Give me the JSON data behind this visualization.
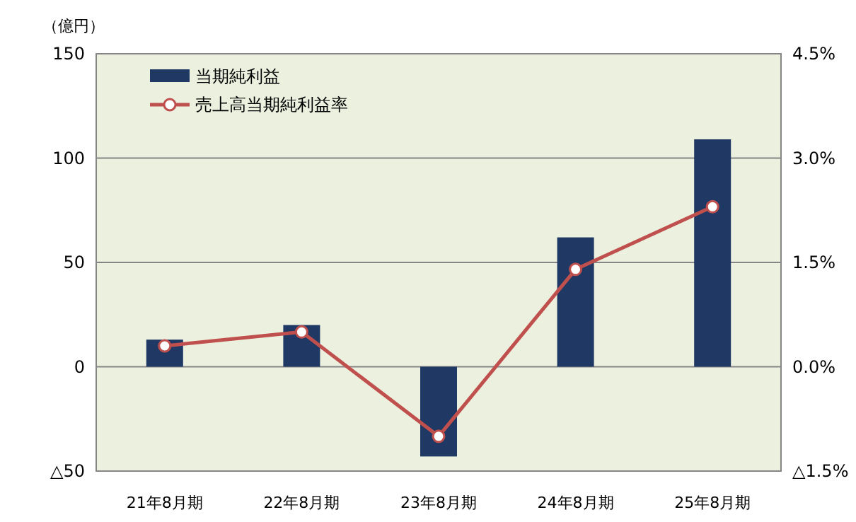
{
  "chart_data": {
    "type": "bar",
    "ylabel": "（億円）",
    "categories": [
      "21年8月期",
      "22年8月期",
      "23年8月期",
      "24年8月期",
      "25年8月期"
    ],
    "series": [
      {
        "name": "当期純利益",
        "color": "#1f3864",
        "values": [
          13,
          20,
          -43,
          62,
          109
        ]
      },
      {
        "name": "売上高当期純利益率",
        "type": "line",
        "axis": "y2",
        "color": "#c0504d",
        "values": [
          0.3,
          0.5,
          -1.0,
          1.4,
          2.3
        ]
      }
    ],
    "ylim": [
      -50,
      150
    ],
    "yticks": [
      {
        "value": -50,
        "label": "△50"
      },
      0,
      50,
      100,
      150
    ],
    "y2lim": [
      -1.5,
      4.5
    ],
    "y2ticks": [
      {
        "value": -1.5,
        "label": "△1.5%"
      },
      {
        "value": 0,
        "label": "0.0%"
      },
      {
        "value": 1.5,
        "label": "1.5%"
      },
      {
        "value": 3,
        "label": "3.0%"
      },
      {
        "value": 4.5,
        "label": "4.5%"
      }
    ],
    "grid": "y",
    "legend": "top left",
    "marker": "circle"
  }
}
